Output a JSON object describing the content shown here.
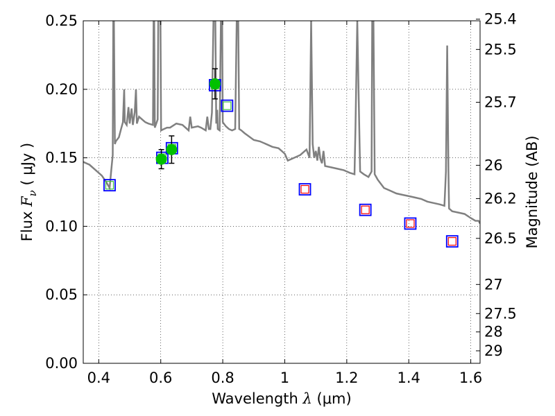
{
  "chart_data": {
    "type": "scatter",
    "xlabel": "Wavelength  λ (μm)",
    "ylabel_left": "Flux  F_ν  ( μJy )",
    "ylabel_left_parts": {
      "pre": "Flux ",
      "sym": "F",
      "sub": "ν",
      "post": "  ( μJy )"
    },
    "xlabel_parts": {
      "pre": "Wavelength  ",
      "sym": "λ",
      "post": " (μm)"
    },
    "ylabel_right": "Magnitude (AB)",
    "xlim": [
      0.35,
      1.63
    ],
    "ylim": [
      0.0,
      0.25
    ],
    "x_ticks": [
      0.4,
      0.6,
      0.8,
      1.0,
      1.2,
      1.4,
      1.6
    ],
    "x_tick_labels": [
      "0.4",
      "0.6",
      "0.8",
      "1",
      "1.2",
      "1.4",
      "1.6"
    ],
    "y_ticks": [
      0.0,
      0.05,
      0.1,
      0.15,
      0.2,
      0.25
    ],
    "y_tick_labels": [
      "0.00",
      "0.05",
      "0.10",
      "0.15",
      "0.20",
      "0.25"
    ],
    "right_ticks": [
      25.4,
      25.5,
      25.7,
      26,
      26.2,
      26.5,
      27,
      27.5,
      28,
      29
    ],
    "right_tick_labels": [
      "25.4",
      "25.5",
      "25.7",
      "26",
      "26.2",
      "26.5",
      "27",
      "27.5",
      "28",
      "29"
    ],
    "grid": true,
    "colors": {
      "model": "#808080",
      "observed": "#00c000",
      "box": "#0000ff",
      "synth_optical": "#40c040",
      "synth_nir": "#ff0000",
      "errorbar": "#000000"
    },
    "series": [
      {
        "kind": "line",
        "points": [
          [
            0.35,
            0.147
          ],
          [
            0.37,
            0.145
          ],
          [
            0.39,
            0.141
          ],
          [
            0.41,
            0.137
          ],
          [
            0.425,
            0.132
          ],
          [
            0.435,
            0.128
          ],
          [
            0.44,
            0.14
          ],
          [
            0.445,
            0.152
          ],
          [
            0.447,
            0.25
          ],
          [
            0.449,
            0.25
          ],
          [
            0.452,
            0.16
          ],
          [
            0.455,
            0.162
          ],
          [
            0.465,
            0.165
          ],
          [
            0.472,
            0.171
          ],
          [
            0.478,
            0.176
          ],
          [
            0.482,
            0.2
          ],
          [
            0.484,
            0.176
          ],
          [
            0.49,
            0.174
          ],
          [
            0.496,
            0.187
          ],
          [
            0.5,
            0.175
          ],
          [
            0.506,
            0.186
          ],
          [
            0.51,
            0.174
          ],
          [
            0.516,
            0.183
          ],
          [
            0.52,
            0.2
          ],
          [
            0.523,
            0.175
          ],
          [
            0.53,
            0.18
          ],
          [
            0.54,
            0.178
          ],
          [
            0.55,
            0.176
          ],
          [
            0.56,
            0.175
          ],
          [
            0.575,
            0.174
          ],
          [
            0.577,
            0.25
          ],
          [
            0.579,
            0.25
          ],
          [
            0.581,
            0.172
          ],
          [
            0.59,
            0.178
          ],
          [
            0.592,
            0.25
          ],
          [
            0.599,
            0.25
          ],
          [
            0.601,
            0.17
          ],
          [
            0.61,
            0.171
          ],
          [
            0.62,
            0.172
          ],
          [
            0.63,
            0.172
          ],
          [
            0.65,
            0.175
          ],
          [
            0.67,
            0.174
          ],
          [
            0.69,
            0.17
          ],
          [
            0.695,
            0.18
          ],
          [
            0.7,
            0.172
          ],
          [
            0.72,
            0.173
          ],
          [
            0.73,
            0.172
          ],
          [
            0.745,
            0.17
          ],
          [
            0.75,
            0.18
          ],
          [
            0.755,
            0.171
          ],
          [
            0.76,
            0.171
          ],
          [
            0.765,
            0.183
          ],
          [
            0.77,
            0.25
          ],
          [
            0.776,
            0.25
          ],
          [
            0.779,
            0.175
          ],
          [
            0.782,
            0.185
          ],
          [
            0.784,
            0.171
          ],
          [
            0.79,
            0.17
          ],
          [
            0.794,
            0.25
          ],
          [
            0.798,
            0.25
          ],
          [
            0.8,
            0.176
          ],
          [
            0.81,
            0.173
          ],
          [
            0.82,
            0.171
          ],
          [
            0.83,
            0.17
          ],
          [
            0.84,
            0.171
          ],
          [
            0.845,
            0.25
          ],
          [
            0.85,
            0.25
          ],
          [
            0.853,
            0.171
          ],
          [
            0.86,
            0.17
          ],
          [
            0.87,
            0.168
          ],
          [
            0.9,
            0.163
          ],
          [
            0.92,
            0.162
          ],
          [
            0.94,
            0.16
          ],
          [
            0.96,
            0.158
          ],
          [
            0.98,
            0.157
          ],
          [
            0.99,
            0.155
          ],
          [
            1.0,
            0.153
          ],
          [
            1.01,
            0.148
          ],
          [
            1.03,
            0.15
          ],
          [
            1.05,
            0.152
          ],
          [
            1.07,
            0.156
          ],
          [
            1.08,
            0.15
          ],
          [
            1.085,
            0.25
          ],
          [
            1.09,
            0.16
          ],
          [
            1.095,
            0.15
          ],
          [
            1.1,
            0.155
          ],
          [
            1.105,
            0.148
          ],
          [
            1.11,
            0.158
          ],
          [
            1.115,
            0.149
          ],
          [
            1.12,
            0.146
          ],
          [
            1.125,
            0.155
          ],
          [
            1.13,
            0.144
          ],
          [
            1.15,
            0.143
          ],
          [
            1.17,
            0.142
          ],
          [
            1.19,
            0.141
          ],
          [
            1.21,
            0.139
          ],
          [
            1.225,
            0.138
          ],
          [
            1.228,
            0.172
          ],
          [
            1.234,
            0.25
          ],
          [
            1.238,
            0.2
          ],
          [
            1.243,
            0.14
          ],
          [
            1.255,
            0.138
          ],
          [
            1.27,
            0.136
          ],
          [
            1.28,
            0.14
          ],
          [
            1.282,
            0.25
          ],
          [
            1.286,
            0.25
          ],
          [
            1.29,
            0.138
          ],
          [
            1.3,
            0.134
          ],
          [
            1.32,
            0.128
          ],
          [
            1.34,
            0.126
          ],
          [
            1.36,
            0.124
          ],
          [
            1.38,
            0.123
          ],
          [
            1.4,
            0.122
          ],
          [
            1.42,
            0.121
          ],
          [
            1.44,
            0.12
          ],
          [
            1.46,
            0.118
          ],
          [
            1.48,
            0.117
          ],
          [
            1.5,
            0.116
          ],
          [
            1.515,
            0.115
          ],
          [
            1.52,
            0.14
          ],
          [
            1.524,
            0.232
          ],
          [
            1.528,
            0.14
          ],
          [
            1.53,
            0.113
          ],
          [
            1.54,
            0.111
          ],
          [
            1.56,
            0.11
          ],
          [
            1.58,
            0.109
          ],
          [
            1.6,
            0.106
          ],
          [
            1.615,
            0.104
          ],
          [
            1.625,
            0.104
          ],
          [
            1.63,
            0.102
          ]
        ]
      },
      {
        "kind": "observed",
        "points": [
          {
            "x": 0.602,
            "y": 0.149,
            "err": 0.007
          },
          {
            "x": 0.635,
            "y": 0.156,
            "err": 0.01
          },
          {
            "x": 0.775,
            "y": 0.204,
            "err": 0.011
          }
        ]
      },
      {
        "kind": "synthetic",
        "points": [
          {
            "x": 0.435,
            "y": 0.13,
            "tone": "optical"
          },
          {
            "x": 0.605,
            "y": 0.15,
            "tone": "optical"
          },
          {
            "x": 0.636,
            "y": 0.157,
            "tone": "optical"
          },
          {
            "x": 0.775,
            "y": 0.203,
            "tone": "optical"
          },
          {
            "x": 0.814,
            "y": 0.188,
            "tone": "optical"
          },
          {
            "x": 1.065,
            "y": 0.127,
            "tone": "nir"
          },
          {
            "x": 1.26,
            "y": 0.112,
            "tone": "nir"
          },
          {
            "x": 1.405,
            "y": 0.102,
            "tone": "nir"
          },
          {
            "x": 1.54,
            "y": 0.089,
            "tone": "nir"
          }
        ]
      }
    ]
  }
}
